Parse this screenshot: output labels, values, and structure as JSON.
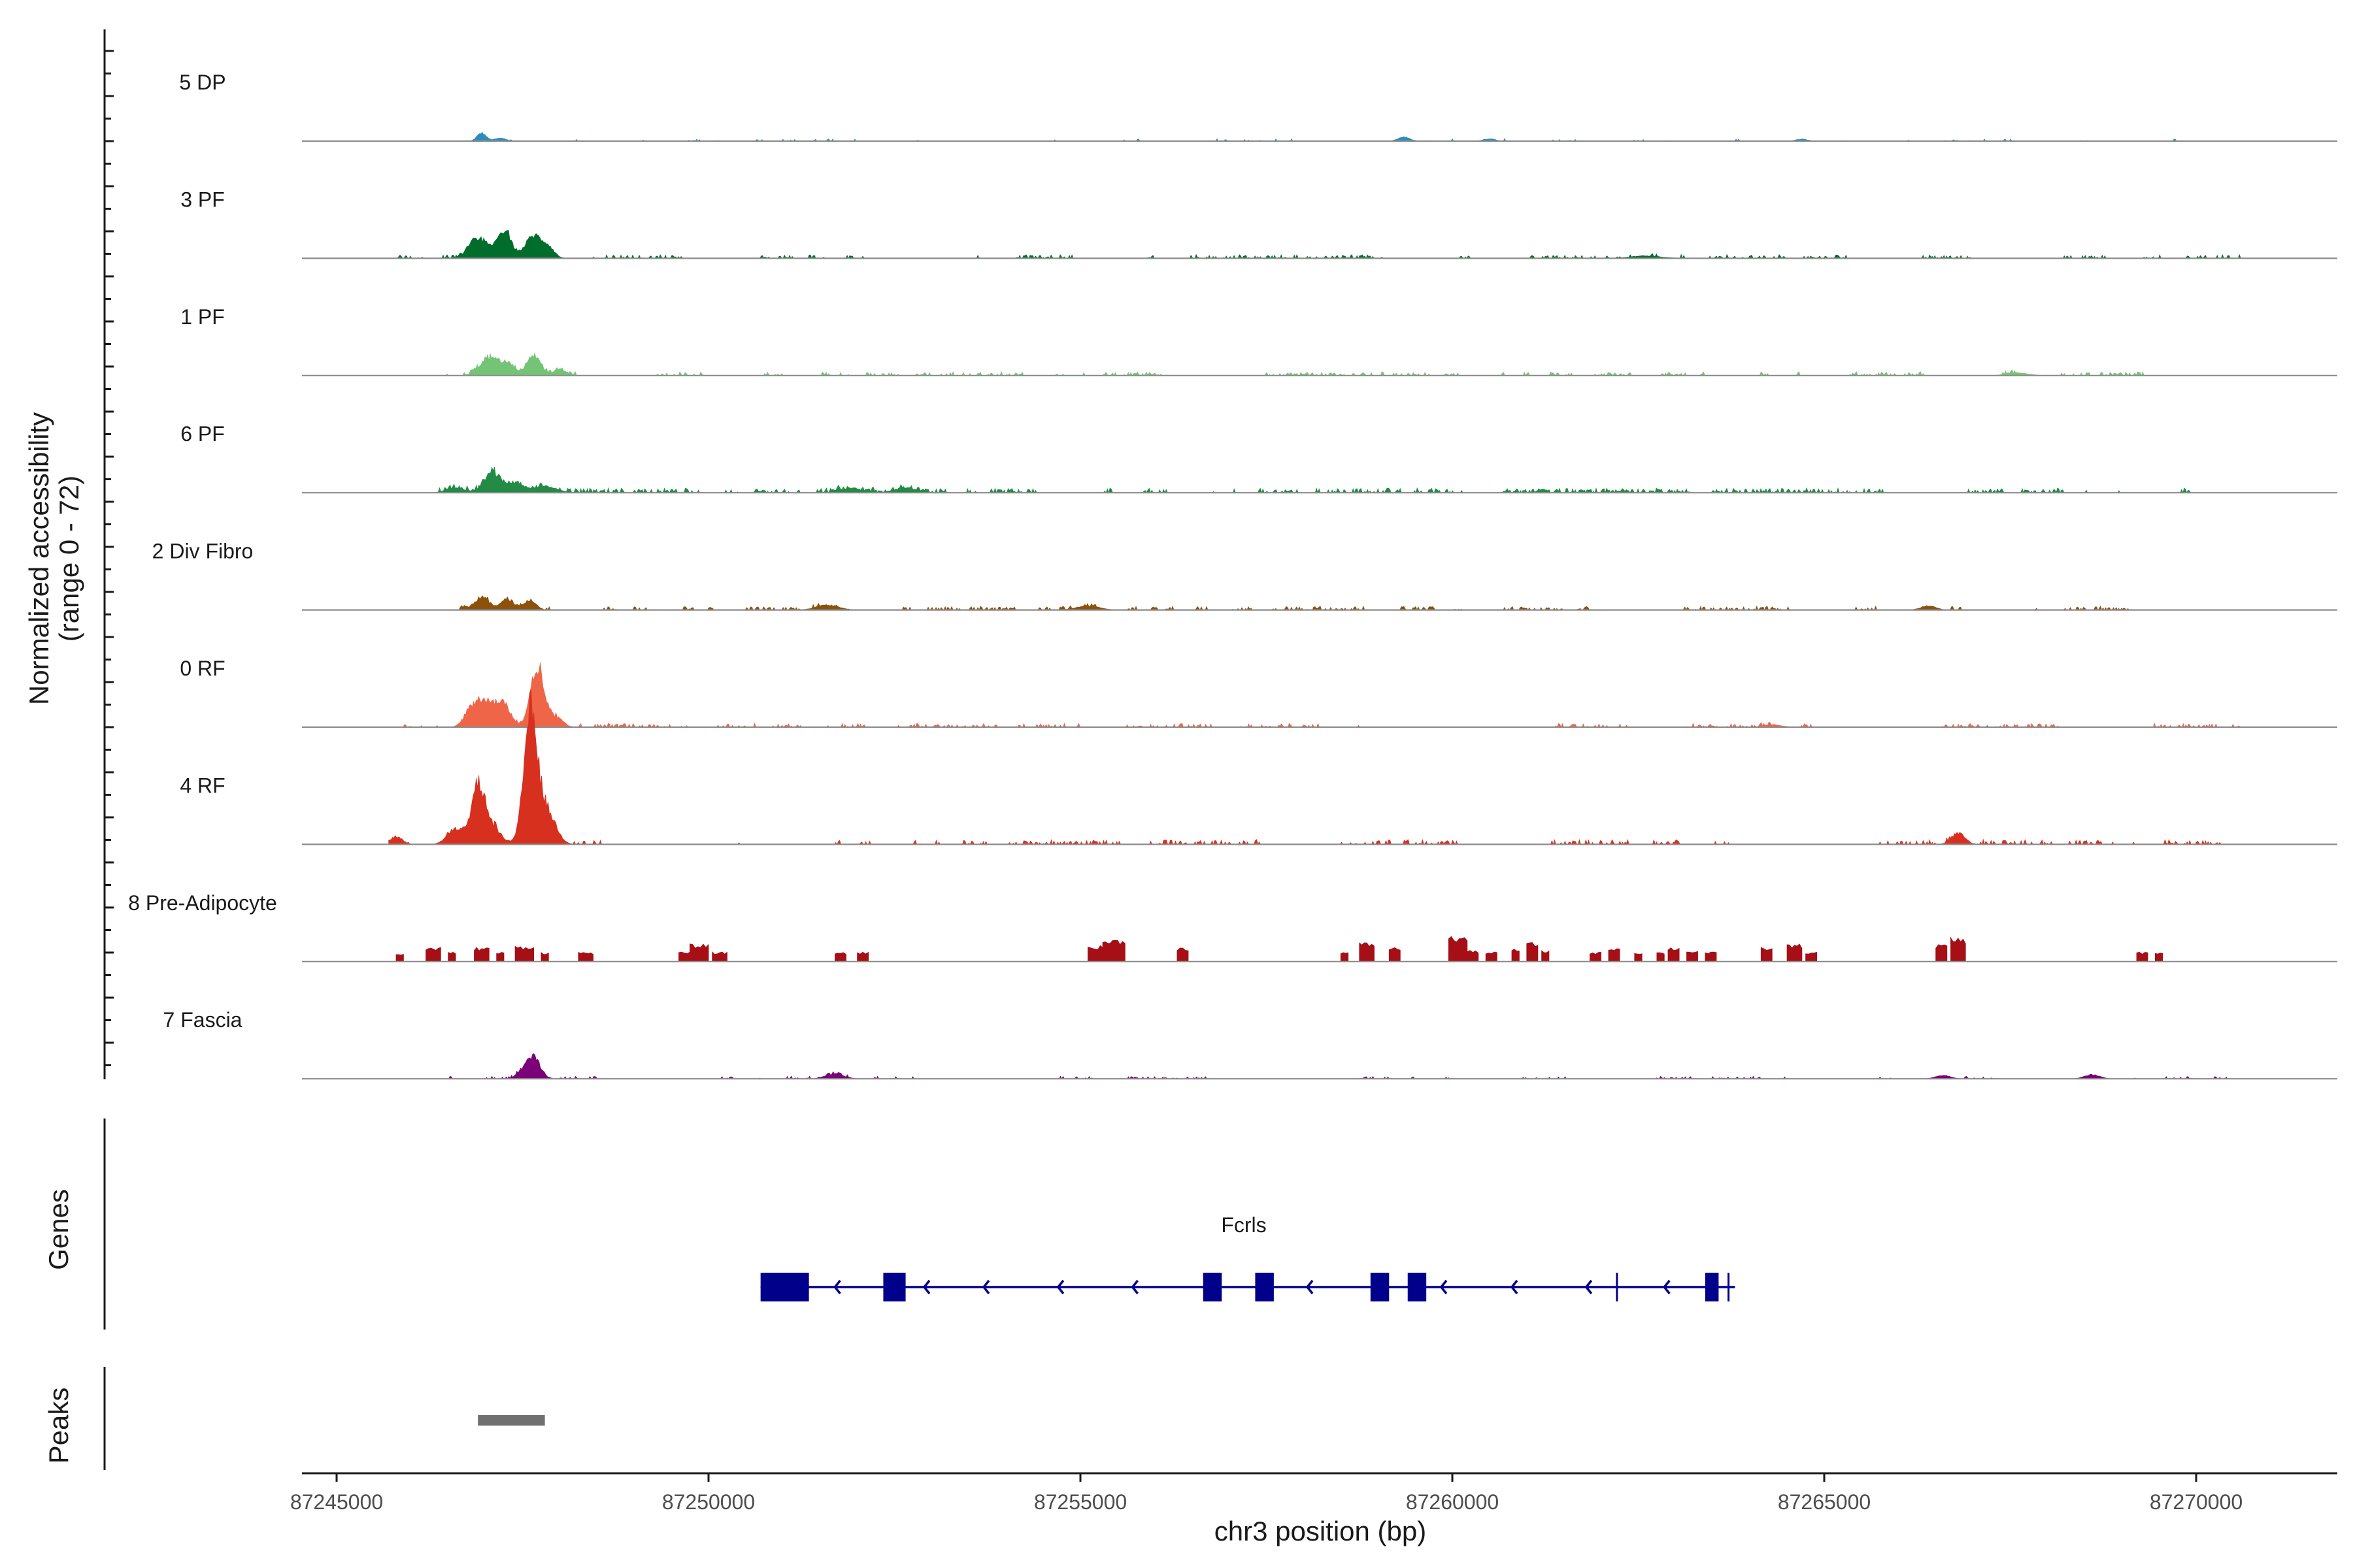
{
  "chart_data": {
    "type": "coverage",
    "chromosome": "chr3",
    "xlabel": "chr3 position (bp)",
    "ylabel_line1": "Normalized accessibility",
    "ylabel_line2": "(range 0 - 72)",
    "y_range": [
      0,
      72
    ],
    "x_range": [
      87244000,
      87272000
    ],
    "x_ticks": [
      {
        "value": 87245000,
        "label": "87245000"
      },
      {
        "value": 87250000,
        "label": "87250000"
      },
      {
        "value": 87255000,
        "label": "87255000"
      },
      {
        "value": 87260000,
        "label": "87260000"
      },
      {
        "value": 87265000,
        "label": "87265000"
      },
      {
        "value": 87270000,
        "label": "87270000"
      }
    ],
    "tracks": [
      {
        "name": "5 DP",
        "color": "#2b8cbe",
        "start": 87246800,
        "end": 87270300,
        "density": 0.12,
        "noise": 0.8,
        "peaks": [
          [
            87246950,
            60,
            5
          ],
          [
            87247200,
            80,
            1.8
          ],
          [
            87259350,
            80,
            2.5
          ],
          [
            87260500,
            80,
            1.5
          ],
          [
            87264700,
            80,
            1.2
          ]
        ]
      },
      {
        "name": "3 PF",
        "color": "#006d2c",
        "start": 87245800,
        "end": 87270600,
        "density": 0.4,
        "noise": 1.2,
        "peaks": [
          [
            87246900,
            120,
            13
          ],
          [
            87247250,
            100,
            16
          ],
          [
            87247650,
            110,
            14
          ],
          [
            87247850,
            80,
            6
          ],
          [
            87262600,
            200,
            1.5
          ]
        ]
      },
      {
        "name": "1 PF",
        "color": "#74c476",
        "start": 87245800,
        "end": 87269300,
        "density": 0.45,
        "noise": 1.2,
        "peaks": [
          [
            87247050,
            130,
            10
          ],
          [
            87247300,
            100,
            7
          ],
          [
            87247650,
            90,
            12
          ],
          [
            87248000,
            90,
            4
          ],
          [
            87267600,
            150,
            1.5
          ]
        ]
      },
      {
        "name": "6 PF",
        "color": "#238b45",
        "start": 87245700,
        "end": 87271000,
        "density": 0.5,
        "noise": 1.5,
        "peaks": [
          [
            87246600,
            120,
            3
          ],
          [
            87247100,
            110,
            12
          ],
          [
            87247400,
            120,
            6
          ],
          [
            87247800,
            150,
            4
          ],
          [
            87251900,
            150,
            3
          ],
          [
            87252650,
            150,
            3
          ]
        ]
      },
      {
        "name": "2 Div Fibro",
        "color": "#8c510a",
        "start": 87246400,
        "end": 87269100,
        "density": 0.45,
        "noise": 1.2,
        "peaks": [
          [
            87246950,
            110,
            7
          ],
          [
            87247300,
            90,
            6
          ],
          [
            87247600,
            80,
            6
          ],
          [
            87251600,
            150,
            3
          ],
          [
            87255100,
            150,
            2.5
          ],
          [
            87266400,
            100,
            2.5
          ]
        ]
      },
      {
        "name": "0 RF",
        "color": "#ef6548",
        "start": 87245700,
        "end": 87270600,
        "density": 0.35,
        "noise": 1.2,
        "peaks": [
          [
            87246800,
            90,
            9
          ],
          [
            87247000,
            120,
            17
          ],
          [
            87247250,
            100,
            13
          ],
          [
            87247700,
            90,
            38
          ],
          [
            87247950,
            90,
            6
          ],
          [
            87264300,
            120,
            1.5
          ]
        ]
      },
      {
        "name": "4 RF",
        "color": "#d7301f",
        "start": 87245700,
        "end": 87270600,
        "density": 0.35,
        "noise": 1.5,
        "peaks": [
          [
            87245800,
            80,
            5
          ],
          [
            87246600,
            110,
            10
          ],
          [
            87246900,
            90,
            36
          ],
          [
            87247100,
            110,
            10
          ],
          [
            87247600,
            80,
            62
          ],
          [
            87247700,
            140,
            28
          ],
          [
            87247900,
            100,
            7
          ],
          [
            87266800,
            90,
            7
          ]
        ]
      },
      {
        "name": "8 Pre-Adipocyte",
        "color": "#a50f15",
        "start": 87245700,
        "end": 87270600,
        "density": 0,
        "noise": 0,
        "peaks": [],
        "blocky": true,
        "blocks": [
          [
            87245800,
            87245900,
            5
          ],
          [
            87246200,
            87246400,
            9
          ],
          [
            87246500,
            87246600,
            6
          ],
          [
            87246850,
            87247050,
            9
          ],
          [
            87247150,
            87247250,
            6
          ],
          [
            87247400,
            87247650,
            10
          ],
          [
            87247750,
            87247850,
            6
          ],
          [
            87248250,
            87248450,
            6
          ],
          [
            87249600,
            87249750,
            6
          ],
          [
            87249750,
            87250000,
            11
          ],
          [
            87250050,
            87250250,
            6
          ],
          [
            87251700,
            87251850,
            6
          ],
          [
            87252000,
            87252150,
            6
          ],
          [
            87255100,
            87255300,
            10
          ],
          [
            87255300,
            87255600,
            14
          ],
          [
            87256300,
            87256450,
            9
          ],
          [
            87258500,
            87258600,
            6
          ],
          [
            87258750,
            87258950,
            12
          ],
          [
            87259150,
            87259300,
            9
          ],
          [
            87259950,
            87260200,
            16
          ],
          [
            87260200,
            87260350,
            7
          ],
          [
            87260450,
            87260600,
            6
          ],
          [
            87260800,
            87260900,
            8
          ],
          [
            87261000,
            87261150,
            12
          ],
          [
            87261200,
            87261300,
            7
          ],
          [
            87261850,
            87262000,
            6
          ],
          [
            87262100,
            87262250,
            9
          ],
          [
            87262450,
            87262550,
            6
          ],
          [
            87262750,
            87262850,
            6
          ],
          [
            87262900,
            87263050,
            9
          ],
          [
            87263150,
            87263300,
            7
          ],
          [
            87263400,
            87263550,
            6
          ],
          [
            87264150,
            87264300,
            9
          ],
          [
            87264500,
            87264700,
            11
          ],
          [
            87264750,
            87264900,
            6
          ],
          [
            87266500,
            87266650,
            11
          ],
          [
            87266700,
            87266900,
            15
          ],
          [
            87269200,
            87269350,
            6
          ],
          [
            87269450,
            87269550,
            6
          ]
        ]
      },
      {
        "name": "7 Fascia",
        "color": "#7a0177",
        "start": 87245700,
        "end": 87270600,
        "density": 0.3,
        "noise": 0.8,
        "peaks": [
          [
            87247650,
            90,
            13
          ],
          [
            87247500,
            80,
            4
          ],
          [
            87251700,
            120,
            3
          ],
          [
            87266600,
            100,
            2
          ],
          [
            87268600,
            100,
            2.5
          ]
        ]
      }
    ],
    "genes_panel_label": "Genes",
    "gene": {
      "name": "Fcrls",
      "color": "#00008b",
      "strand": "-",
      "start": 87250700,
      "end": 87263800,
      "exons": [
        [
          87250700,
          87251350
        ],
        [
          87252350,
          87252650
        ],
        [
          87256650,
          87256900
        ],
        [
          87257350,
          87257600
        ],
        [
          87258900,
          87259150
        ],
        [
          87259400,
          87259650
        ],
        [
          87262200,
          87262220
        ],
        [
          87263400,
          87263580
        ],
        [
          87263700,
          87263750
        ]
      ],
      "arrows": [
        87251700,
        87252900,
        87253700,
        87254700,
        87255700,
        87258050,
        87259850,
        87260800,
        87261800,
        87262850
      ]
    },
    "peaks_panel_label": "Peaks",
    "peak_regions": [
      {
        "start": 87246900,
        "end": 87247800,
        "color": "#707070"
      }
    ]
  }
}
